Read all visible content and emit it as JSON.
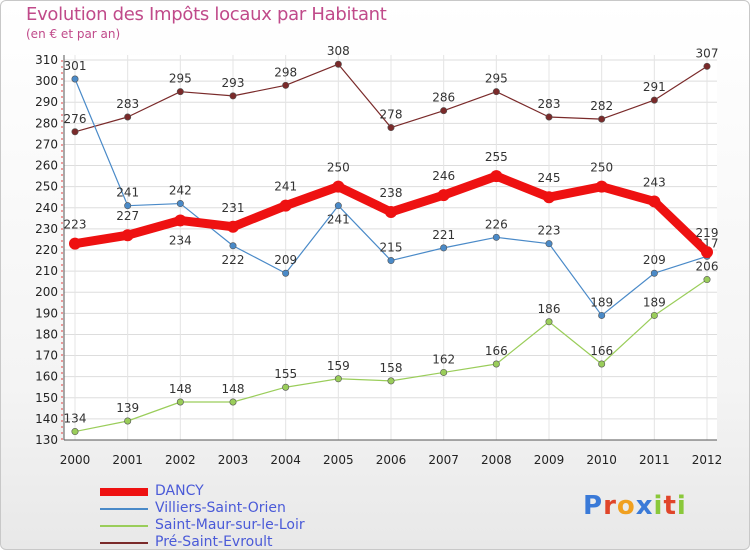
{
  "chart_data": {
    "type": "line",
    "title": "Evolution des Impôts locaux par Habitant",
    "subtitle": "(en € et par an)",
    "xlabel": "",
    "ylabel": "",
    "categories": [
      "2000",
      "2001",
      "2002",
      "2003",
      "2004",
      "2005",
      "2006",
      "2007",
      "2008",
      "2009",
      "2010",
      "2011",
      "2012"
    ],
    "ylim": [
      130,
      310
    ],
    "yticks": [
      130,
      140,
      150,
      160,
      170,
      180,
      190,
      200,
      210,
      220,
      230,
      240,
      250,
      260,
      270,
      280,
      290,
      300,
      310
    ],
    "grid": true,
    "series": [
      {
        "name": "Pré-Saint-Evroult",
        "color": "#7a2a2a",
        "values": [
          276,
          283,
          295,
          293,
          298,
          308,
          278,
          286,
          295,
          283,
          282,
          291,
          307
        ]
      },
      {
        "name": "Villiers-Saint-Orien",
        "color": "#4a8ac8",
        "values": [
          301,
          241,
          242,
          222,
          209,
          241,
          215,
          221,
          226,
          223,
          189,
          209,
          217
        ]
      },
      {
        "name": "Saint-Maur-sur-le-Loir",
        "color": "#9acd5a",
        "values": [
          134,
          139,
          148,
          148,
          155,
          159,
          158,
          162,
          166,
          186,
          166,
          189,
          206
        ]
      },
      {
        "name": "DANCY",
        "color": "#ee1111",
        "values": [
          223,
          227,
          234,
          231,
          241,
          250,
          238,
          246,
          255,
          245,
          250,
          243,
          219
        ]
      }
    ],
    "legend_order": [
      "DANCY",
      "Villiers-Saint-Orien",
      "Saint-Maur-sur-le-Loir",
      "Pré-Saint-Evroult"
    ]
  },
  "logo": {
    "text": "Proxiti",
    "letters": [
      "P",
      "r",
      "o",
      "x",
      "i",
      "t",
      "i"
    ],
    "colors": [
      "#3a7ad8",
      "#e0452a",
      "#f0a020",
      "#3a7ad8",
      "#8ac83a",
      "#e0452a",
      "#8ac83a"
    ]
  }
}
